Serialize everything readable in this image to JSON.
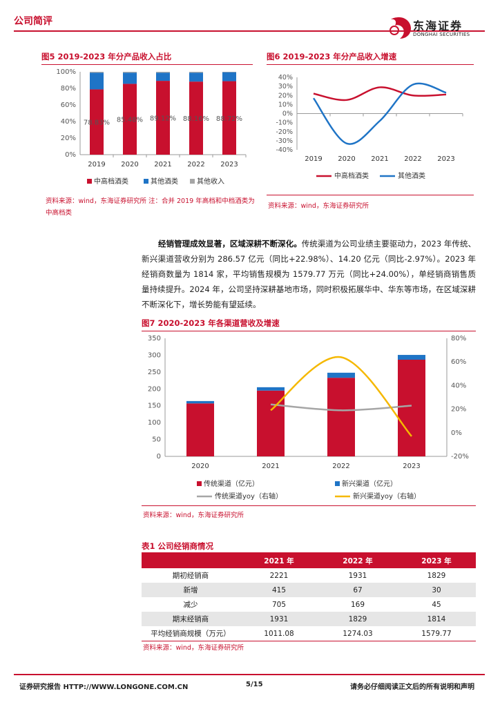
{
  "header": {
    "section_title": "公司简评",
    "logo_cn": "东海证券",
    "logo_en": "DONGHAI SECURITIES"
  },
  "fig5": {
    "title": "图5  2019-2023 年分产品收入占比",
    "source": "资料来源：wind，东海证券研究所 注：合并 2019 年高档和中档酒类为中高档类"
  },
  "fig6": {
    "title": "图6  2019-2023 年分产品收入增速",
    "source": "资料来源：wind，东海证券研究所"
  },
  "paragraph": {
    "lead": "经销管理成效显著，区域深耕不断深化。",
    "body": "传统渠道为公司业绩主要驱动力，2023 年传统、新兴渠道营收分别为 286.57 亿元（同比+22.98%）、14.20 亿元（同比-2.97%）。2023 年经销商数量为 1814 家，平均销售规模为 1579.77 万元（同比+24.00%），单经销商销售质量持续提升。2024 年，公司坚持深耕基地市场，同时积极拓展华中、华东等市场，在区域深耕不断深化下，增长势能有望延续。"
  },
  "fig7": {
    "title": "图7  2020-2023 年各渠道营收及增速",
    "source": "资料来源：wind，东海证券研究所"
  },
  "table1": {
    "title": "表1  公司经销商情况",
    "headers": [
      "",
      "2021 年",
      "2022 年",
      "2023 年"
    ],
    "rows": [
      [
        "期初经销商",
        "2221",
        "1931",
        "1829"
      ],
      [
        "新增",
        "415",
        "67",
        "30"
      ],
      [
        "减少",
        "705",
        "169",
        "45"
      ],
      [
        "期末经销商",
        "1931",
        "1829",
        "1814"
      ],
      [
        "平均经销商规模（万元）",
        "1011.08",
        "1274.03",
        "1579.77"
      ]
    ],
    "source": "资料来源：wind，东海证券研究所"
  },
  "footer": {
    "left": "证券研究报告   HTTP://WWW.LONGONE.COM.CN",
    "page": "5/15",
    "right": "请务必仔细阅读正文后的所有说明和声明"
  },
  "colors": {
    "red": "#c8102e",
    "blue": "#1f74c6",
    "gray": "#a6a6a6",
    "yellow": "#f5b800"
  },
  "chart_data": [
    {
      "type": "bar",
      "stacked": true,
      "categories": [
        "2019",
        "2020",
        "2021",
        "2022",
        "2023"
      ],
      "series": [
        {
          "name": "中高档酒类",
          "values": [
            78.8,
            85.5,
            89.1,
            88.2,
            88.7
          ],
          "color": "#c8102e"
        },
        {
          "name": "其他酒类",
          "values": [
            20.2,
            13.5,
            9.9,
            10.8,
            10.8
          ],
          "color": "#1f74c6"
        },
        {
          "name": "其他收入",
          "values": [
            1.0,
            1.0,
            1.0,
            1.0,
            0.5
          ],
          "color": "#a6a6a6"
        }
      ],
      "data_labels": [
        "78.83%",
        "85.48%",
        "89.12%",
        "88.16%",
        "88.72%"
      ],
      "y_ticks": [
        "0%",
        "20%",
        "40%",
        "60%",
        "80%",
        "100%"
      ],
      "ylim": [
        0,
        100
      ],
      "legend": "bottom"
    },
    {
      "type": "line",
      "categories": [
        "2019",
        "2020",
        "2021",
        "2022",
        "2023"
      ],
      "series": [
        {
          "name": "中高档酒类",
          "values": [
            22,
            15,
            29,
            20,
            21
          ],
          "color": "#c8102e"
        },
        {
          "name": "其他酒类",
          "values": [
            17,
            -33,
            -8,
            32,
            23
          ],
          "color": "#1f74c6"
        }
      ],
      "y_ticks": [
        "-40%",
        "-30%",
        "-20%",
        "-10%",
        "0%",
        "10%",
        "20%",
        "30%",
        "40%"
      ],
      "ylim": [
        -40,
        40
      ],
      "legend": "bottom"
    },
    {
      "type": "bar",
      "stacked": true,
      "categories": [
        "2020",
        "2021",
        "2022",
        "2023"
      ],
      "series": [
        {
          "name": "传统渠道（亿元）",
          "values": [
            157,
            195,
            233,
            286.57
          ],
          "color": "#c8102e",
          "axis": "left"
        },
        {
          "name": "新兴渠道（亿元）",
          "values": [
            7,
            10,
            15,
            14.2
          ],
          "color": "#1f74c6",
          "axis": "left"
        },
        {
          "name": "传统渠道yoy（右轴）",
          "type": "line",
          "x": [
            "2021",
            "2022",
            "2023"
          ],
          "values": [
            24,
            19,
            22.98
          ],
          "color": "#a6a6a6",
          "axis": "right"
        },
        {
          "name": "新兴渠道yoy（右轴）",
          "type": "line",
          "x": [
            "2021",
            "2022",
            "2023"
          ],
          "values": [
            19,
            64,
            -2.97
          ],
          "color": "#f5b800",
          "axis": "right"
        }
      ],
      "y_ticks": [
        "0",
        "50",
        "100",
        "150",
        "200",
        "250",
        "300",
        "350"
      ],
      "y2_ticks": [
        "-20%",
        "0%",
        "20%",
        "40%",
        "60%",
        "80%"
      ],
      "ylim": [
        0,
        350
      ],
      "y2lim": [
        -20,
        80
      ],
      "legend": "bottom"
    }
  ]
}
